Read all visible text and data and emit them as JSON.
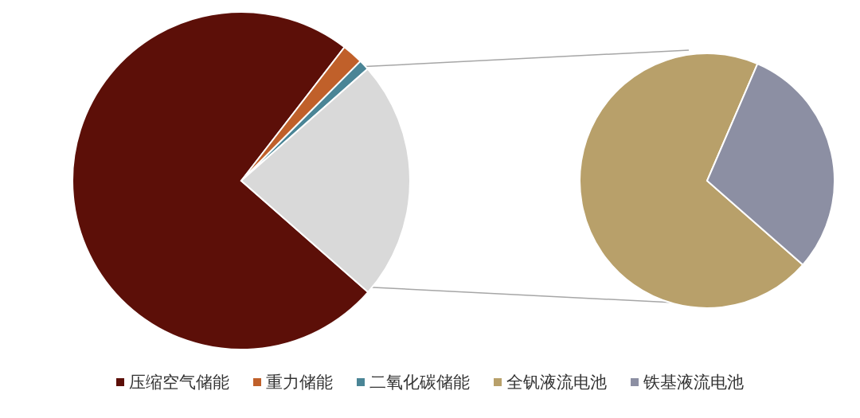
{
  "chart_data": [
    {
      "type": "pie",
      "categories": [
        "压缩空气储能",
        "重力储能",
        "二氧化碳储能",
        null
      ],
      "values": [
        74,
        2,
        1,
        23
      ],
      "colors": [
        "#5c0f08",
        "#c0602a",
        "#4a8596",
        "#d9d9d9"
      ],
      "legend": "bottom"
    },
    {
      "type": "pie",
      "categories": [
        "全钒液流电池",
        "铁基液流电池"
      ],
      "values": [
        70,
        30
      ],
      "colors": [
        "#b8a06a",
        "#8c8fa3"
      ],
      "legend": "bottom"
    }
  ]
}
